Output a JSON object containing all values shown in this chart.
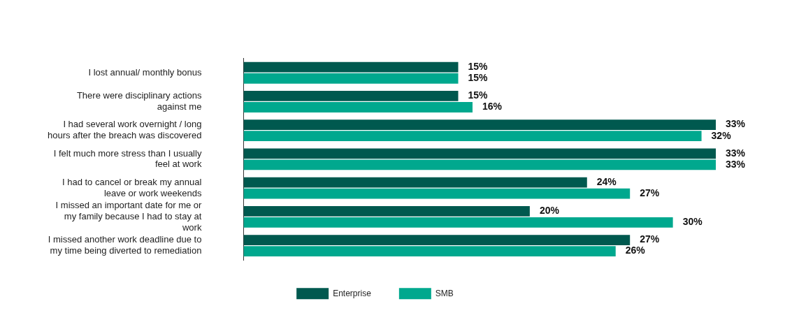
{
  "chart_data": {
    "type": "bar",
    "orientation": "horizontal",
    "categories": [
      "I lost annual/ monthly bonus",
      "There were disciplinary actions against me",
      "I had several work overnight / long hours after the breach was discovered",
      "I felt much more stress than I usually feel at work",
      "I had to cancel or break my annual leave or work weekends",
      "I missed an important date for me or my family because I had to stay at work",
      "I missed another work deadline due to my time being diverted to remediation"
    ],
    "series": [
      {
        "name": "Enterprise",
        "color": "#00594f",
        "values": [
          15,
          15,
          33,
          33,
          24,
          20,
          27
        ],
        "value_labels": [
          "15%",
          "15%",
          "33%",
          "33%",
          "24%",
          "20%",
          "27%"
        ]
      },
      {
        "name": "SMB",
        "color": "#00a88e",
        "values": [
          15,
          16,
          32,
          33,
          27,
          30,
          26
        ],
        "value_labels": [
          "15%",
          "16%",
          "32%",
          "33%",
          "27%",
          "30%",
          "26%"
        ]
      }
    ],
    "grid": false,
    "legend": "bottom",
    "tick_labels": "y"
  }
}
